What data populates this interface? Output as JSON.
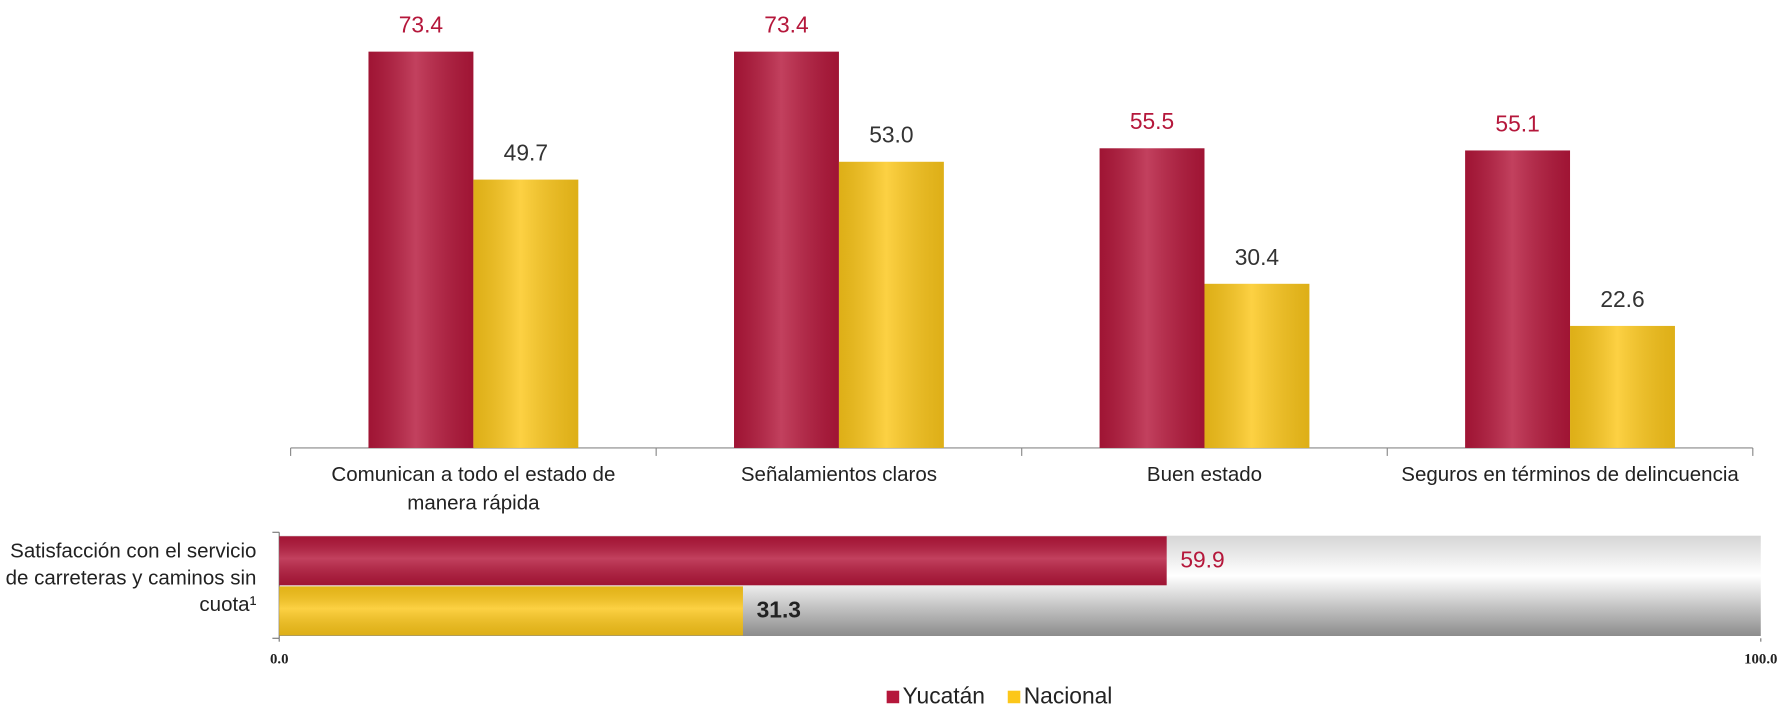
{
  "chart_data": [
    {
      "type": "bar",
      "categories": [
        "Comunican a todo el estado de manera rápida",
        "Señalamientos claros",
        "Buen estado",
        "Seguros en términos de delincuencia"
      ],
      "series": [
        {
          "name": "Yucatán",
          "color": "#b5173b",
          "values": [
            73.4,
            73.4,
            55.5,
            55.1
          ],
          "value_labels": [
            "73.4",
            "73.4",
            "55.5",
            "55.1"
          ]
        },
        {
          "name": "Nacional",
          "color": "#fcc71a",
          "values": [
            49.7,
            53.0,
            30.4,
            22.6
          ],
          "value_labels": [
            "49.7",
            "53.0",
            "30.4",
            "22.6"
          ]
        }
      ],
      "ylim": [
        0,
        80
      ]
    },
    {
      "type": "hbar",
      "categories": [
        "Satisfacción con el servicio de carreteras y caminos sin cuota¹"
      ],
      "series": [
        {
          "name": "Yucatán",
          "color": "#b5173b",
          "values": [
            59.9
          ],
          "value_labels": [
            "59.9"
          ]
        },
        {
          "name": "Nacional",
          "color": "#fcc71a",
          "values": [
            31.3
          ],
          "value_labels": [
            "31.3"
          ]
        }
      ],
      "xlim": [
        0,
        100
      ],
      "xticks": [
        {
          "value": 0,
          "label": "0.0"
        },
        {
          "value": 100,
          "label": "100.0"
        }
      ]
    }
  ]
}
